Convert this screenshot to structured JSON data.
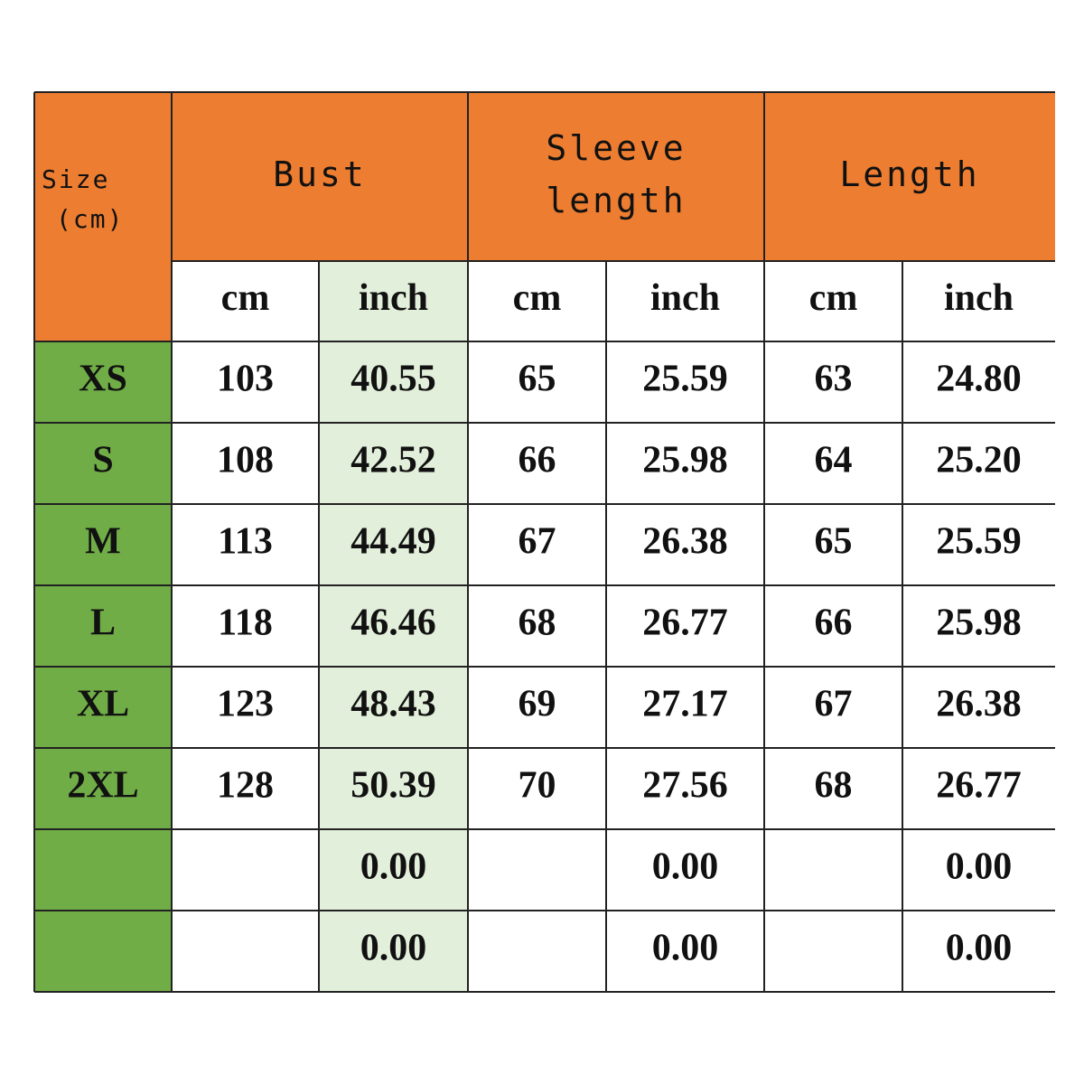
{
  "table": {
    "size_header": [
      "Size",
      "(cm)"
    ],
    "groups": [
      {
        "name": [
          "Bust"
        ],
        "units": [
          "cm",
          "inch"
        ]
      },
      {
        "name": [
          "Sleeve",
          "length"
        ],
        "units": [
          "cm",
          "inch"
        ]
      },
      {
        "name": [
          "Length"
        ],
        "units": [
          "cm",
          "inch"
        ]
      }
    ],
    "rows": [
      [
        "XS",
        "103",
        "40.55",
        "65",
        "25.59",
        "63",
        "24.80"
      ],
      [
        "S",
        "108",
        "42.52",
        "66",
        "25.98",
        "64",
        "25.20"
      ],
      [
        "M",
        "113",
        "44.49",
        "67",
        "26.38",
        "65",
        "25.59"
      ],
      [
        "L",
        "118",
        "46.46",
        "68",
        "26.77",
        "66",
        "25.98"
      ],
      [
        "XL",
        "123",
        "48.43",
        "69",
        "27.17",
        "67",
        "26.38"
      ],
      [
        "2XL",
        "128",
        "50.39",
        "70",
        "27.56",
        "68",
        "26.77"
      ],
      [
        null,
        null,
        "0.00",
        null,
        "0.00",
        null,
        "0.00"
      ],
      [
        null,
        null,
        "0.00",
        null,
        "0.00",
        null,
        "0.00"
      ]
    ]
  }
}
